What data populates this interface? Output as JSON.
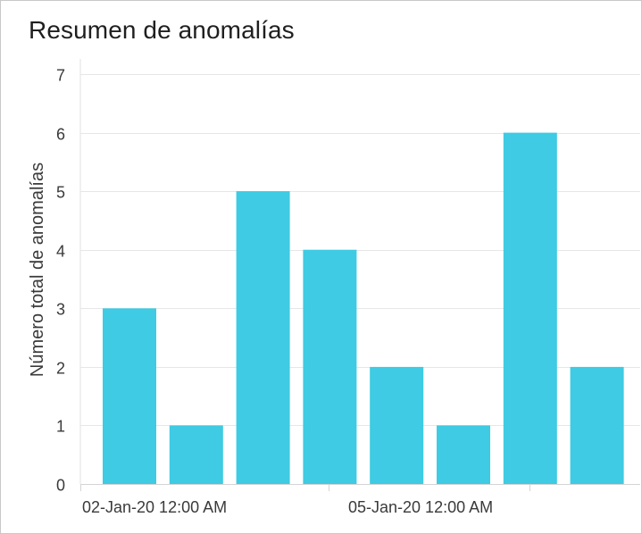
{
  "panel": {
    "title": "Resumen de anomalías"
  },
  "chart_data": {
    "type": "bar",
    "title": "Resumen de anomalías",
    "xlabel": "",
    "ylabel": "Número total de anomalías",
    "ylim": [
      0,
      7
    ],
    "yticks": [
      "0",
      "1",
      "2",
      "3",
      "4",
      "5",
      "6",
      "7"
    ],
    "xtick_labels": [
      "02-Jan-20 12:00 AM",
      "05-Jan-20 12:00 AM"
    ],
    "categories": [
      "",
      "",
      "",
      "",
      "",
      "",
      "",
      ""
    ],
    "values": [
      3,
      1,
      5,
      4,
      2,
      1,
      6,
      2
    ],
    "bar_color": "#3ecbe3",
    "grid": true,
    "legend": "none"
  }
}
